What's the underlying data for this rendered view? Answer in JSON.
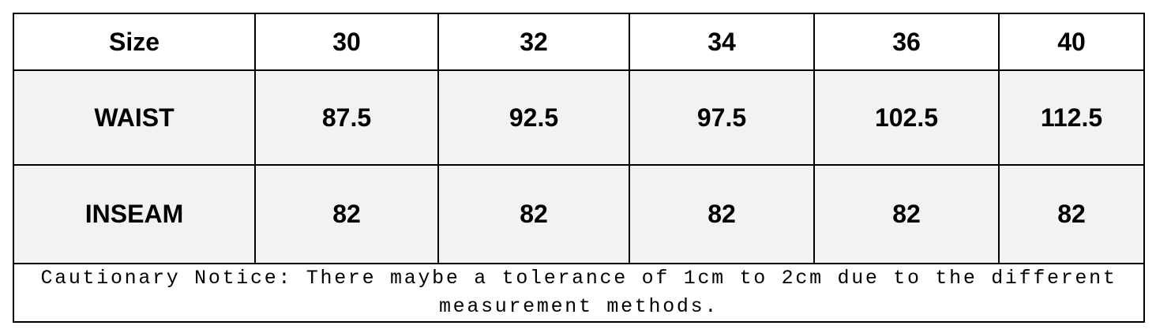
{
  "table": {
    "header": [
      "Size",
      "30",
      "32",
      "34",
      "36",
      "40"
    ],
    "rows": [
      [
        "WAIST",
        "87.5",
        "92.5",
        "97.5",
        "102.5",
        "112.5"
      ],
      [
        "INSEAM",
        "82",
        "82",
        "82",
        "82",
        "82"
      ]
    ],
    "notice": "Cautionary Notice: There maybe a tolerance of 1cm to 2cm due to the different measurement methods."
  }
}
